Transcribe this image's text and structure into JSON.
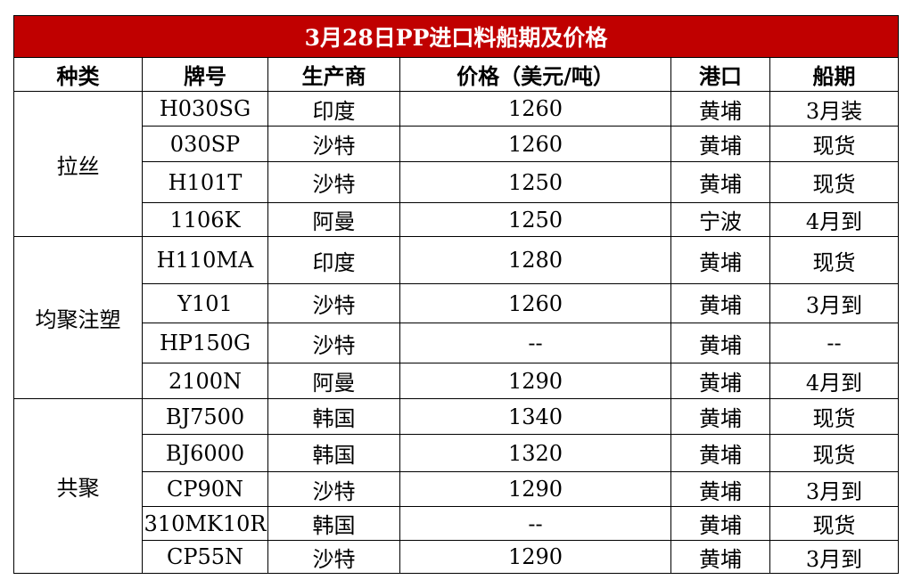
{
  "title": "3月28日PP进口料船期及价格",
  "header": [
    "种类",
    "牌号",
    "生产商",
    "价格（美元/吨）",
    "港口",
    "船期"
  ],
  "groups": [
    {
      "name": "拉丝",
      "rows": [
        [
          "H030SG",
          "印度",
          1260,
          "黄埔",
          "3月装"
        ],
        [
          "030SP",
          "沙特",
          1260,
          "黄埔",
          "现货"
        ],
        [
          "H101T",
          "沙特",
          1250,
          "黄埔",
          "现货"
        ],
        [
          "1106K",
          "阿曼",
          1250,
          "宁波",
          "4月到"
        ]
      ]
    },
    {
      "name": "均聚注塑",
      "rows": [
        [
          "H110MA",
          "印度",
          1280,
          "黄埔",
          "现货"
        ],
        [
          "Y101",
          "沙特",
          1260,
          "黄埔",
          "3月到"
        ],
        [
          "HP150G",
          "沙特",
          "--",
          "黄埔",
          "--"
        ],
        [
          "2100N",
          "阿曼",
          1290,
          "黄埔",
          "4月到"
        ]
      ]
    },
    {
      "name": "共聚",
      "rows": [
        [
          "BJ7500",
          "韩国",
          1340,
          "黄埔",
          "现货"
        ],
        [
          "BJ6000",
          "韩国",
          1320,
          "黄埔",
          "现货"
        ],
        [
          "CP90N",
          "沙特",
          1290,
          "黄埔",
          "3月到"
        ],
        [
          "310MK10R",
          "韩国",
          "--",
          "黄埔",
          "现货"
        ],
        [
          "CP55N",
          "沙特",
          1290,
          "黄埔",
          "3月到"
        ]
      ]
    }
  ]
}
